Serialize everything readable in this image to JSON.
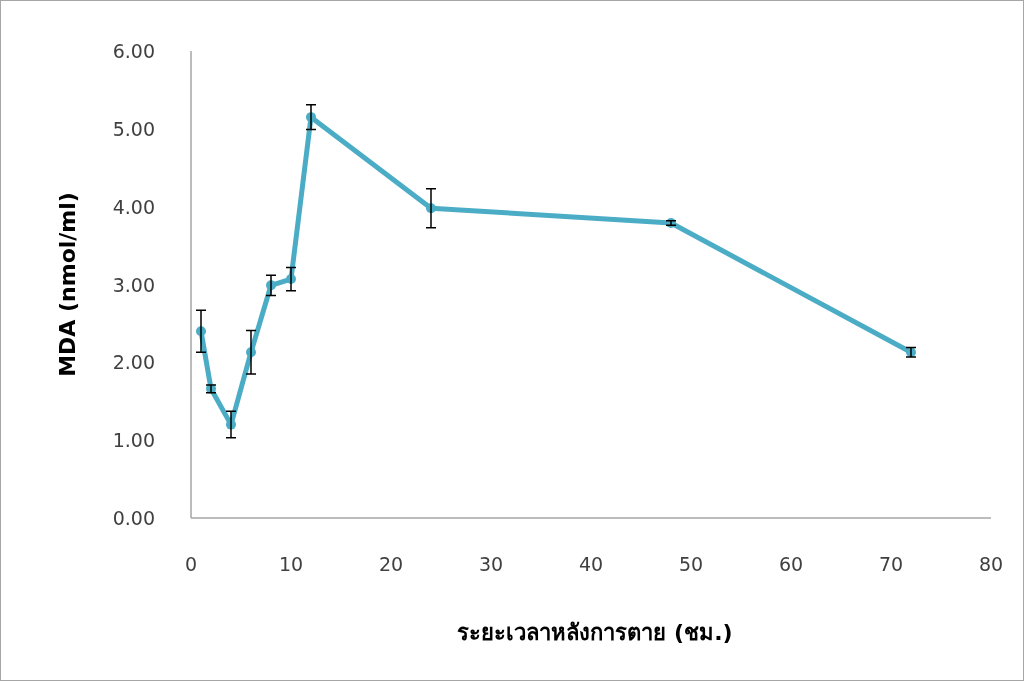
{
  "chart_data": {
    "type": "line",
    "xlabel": "ระยะเวลาหลังการตาย (ชม.)",
    "ylabel": "MDA (nmol/ml)",
    "x": [
      1,
      2,
      4,
      6,
      8,
      10,
      12,
      24,
      48,
      72
    ],
    "series": [
      {
        "color": "#4bacc6",
        "values": [
          2.4,
          1.66,
          1.2,
          2.13,
          2.99,
          3.07,
          5.15,
          3.98,
          3.79,
          2.13
        ],
        "errors": [
          0.27,
          0.05,
          0.17,
          0.28,
          0.13,
          0.15,
          0.16,
          0.25,
          0.03,
          0.06
        ]
      }
    ],
    "xlim": [
      0,
      80
    ],
    "xticks": [
      0,
      10,
      20,
      30,
      40,
      50,
      60,
      70,
      80
    ],
    "ylim": [
      0,
      6
    ],
    "yticks": [
      {
        "value": 0,
        "label": "0.00"
      },
      {
        "value": 1,
        "label": "1.00"
      },
      {
        "value": 2,
        "label": "2.00"
      },
      {
        "value": 3,
        "label": "3.00"
      },
      {
        "value": 4,
        "label": "4.00"
      },
      {
        "value": 5,
        "label": "5.00"
      },
      {
        "value": 6,
        "label": "6.00"
      }
    ],
    "grid": false,
    "marker": "circle",
    "line_style": "solid"
  }
}
